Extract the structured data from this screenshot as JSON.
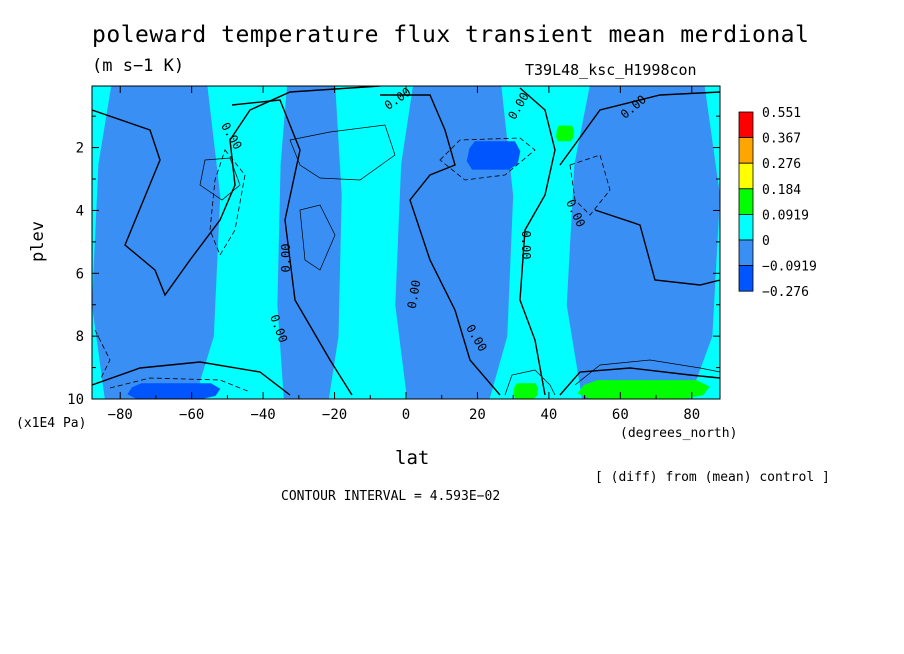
{
  "chart_data": {
    "type": "heatmap",
    "subtype": "filled-contour",
    "title": "poleward temperature flux transient mean merdional",
    "units": "(m s−1 K)",
    "run_id": "T39L48_ksc_H1998con",
    "xlabel": "lat",
    "x_units": "(degrees_north)",
    "ylabel": "plev",
    "y_units": "(x1E4 Pa)",
    "x_ticks": [
      "−80",
      "−60",
      "−40",
      "−20",
      "0",
      "20",
      "40",
      "60",
      "80"
    ],
    "x_tick_values": [
      -80,
      -60,
      -40,
      -20,
      0,
      20,
      40,
      60,
      80
    ],
    "y_ticks": [
      "2",
      "4",
      "6",
      "8",
      "10"
    ],
    "y_tick_values": [
      2,
      4,
      6,
      8,
      10
    ],
    "xlim": [
      -87.9,
      87.9
    ],
    "ylim": [
      10,
      0.04
    ],
    "y_inverted": true,
    "legend_position": "right",
    "contour_interval_note": "CONTOUR INTERVAL = 4.593E−02",
    "diff_note": "[ (diff) from (mean) control ]",
    "contour_labels": [
      "0.00",
      "0.00",
      "0.00",
      "0.00",
      "0.00",
      "0.00",
      "0.00",
      "0.00",
      "0.00",
      "0.00"
    ],
    "colorbar": [
      {
        "label": "0.551",
        "color": "#ff0000"
      },
      {
        "label": "0.367",
        "color": "#ffa500"
      },
      {
        "label": "0.276",
        "color": "#ffff00"
      },
      {
        "label": "0.184",
        "color": "#00ff00"
      },
      {
        "label": "0.0919",
        "color": "#00ffff"
      },
      {
        "label": "0",
        "color": "#3a8ff5"
      },
      {
        "label": "−0.0919",
        "color": "#0055ff"
      },
      {
        "label": "−0.276",
        "color": null
      }
    ],
    "background_level_color": "#00ffff",
    "regions": [
      {
        "level": "negative",
        "color": "#3a8ff5",
        "lat": [
          -87.9,
          -52
        ],
        "plev": [
          0.04,
          10
        ]
      },
      {
        "level": "negative",
        "color": "#3a8ff5",
        "lat": [
          -36,
          -18
        ],
        "plev": [
          0.04,
          10
        ]
      },
      {
        "level": "negative",
        "color": "#3a8ff5",
        "lat": [
          -3,
          30
        ],
        "plev": [
          0.04,
          10
        ]
      },
      {
        "level": "negative",
        "color": "#3a8ff5",
        "lat": [
          45,
          87.9
        ],
        "plev": [
          0.04,
          10
        ]
      },
      {
        "level": "strong-negative",
        "color": "#0055ff",
        "lat": [
          -78,
          -52
        ],
        "plev": [
          9.5,
          10
        ]
      },
      {
        "level": "strong-negative",
        "color": "#0055ff",
        "lat": [
          17,
          32
        ],
        "plev": [
          1.8,
          2.7
        ]
      },
      {
        "level": "positive",
        "color": "#00ff00",
        "lat": [
          48,
          85
        ],
        "plev": [
          9.4,
          10
        ]
      },
      {
        "level": "positive",
        "color": "#00ff00",
        "lat": [
          30,
          37
        ],
        "plev": [
          9.5,
          10
        ]
      },
      {
        "level": "positive",
        "color": "#00ff00",
        "lat": [
          42,
          47
        ],
        "plev": [
          1.3,
          1.8
        ]
      }
    ]
  }
}
